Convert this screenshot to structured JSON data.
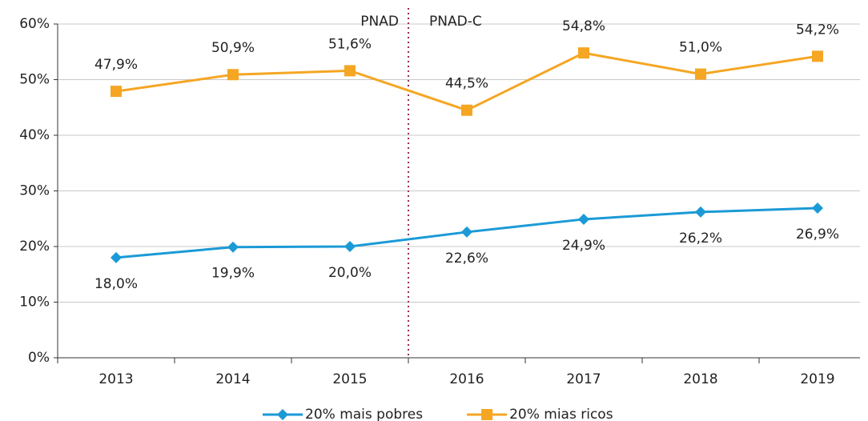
{
  "chart_data": {
    "type": "line",
    "categories": [
      "2013",
      "2014",
      "2015",
      "2016",
      "2017",
      "2018",
      "2019"
    ],
    "series": [
      {
        "name": "20% mais pobres",
        "color": "#1b9ad6",
        "marker": "diamond",
        "values": [
          18.0,
          19.9,
          20.0,
          22.6,
          24.9,
          26.2,
          26.9
        ],
        "value_labels": [
          "18,0%",
          "19,9%",
          "20,0%",
          "22,6%",
          "24,9%",
          "26,2%",
          "26,9%"
        ]
      },
      {
        "name": "20% mias ricos",
        "color": "#f5a623",
        "marker": "square",
        "values": [
          47.9,
          50.9,
          51.6,
          44.5,
          54.8,
          51.0,
          54.2
        ],
        "value_labels": [
          "47,9%",
          "50,9%",
          "51,6%",
          "44,5%",
          "54,8%",
          "51,0%",
          "54,2%"
        ]
      }
    ],
    "ylim": [
      0,
      60
    ],
    "yticks": [
      {
        "value": 0,
        "label": "0%"
      },
      {
        "value": 10,
        "label": "10%"
      },
      {
        "value": 20,
        "label": "20%"
      },
      {
        "value": 30,
        "label": "30%"
      },
      {
        "value": 40,
        "label": "40%"
      },
      {
        "value": 50,
        "label": "50%"
      },
      {
        "value": 60,
        "label": "60%"
      }
    ],
    "grid": true,
    "annotations": [
      {
        "text": "PNAD"
      },
      {
        "text": "PNAD-C"
      }
    ],
    "legend": "bottom"
  }
}
